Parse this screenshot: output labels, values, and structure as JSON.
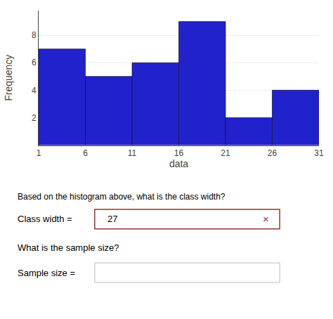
{
  "chart_data": {
    "type": "histogram",
    "bins": [
      1,
      6,
      11,
      16,
      21,
      26,
      31
    ],
    "values": [
      7,
      5,
      6,
      9,
      2,
      4
    ],
    "color": "#2222cc",
    "xlabel": "data",
    "ylabel": "Frequency",
    "xlim": [
      1,
      31
    ],
    "xticks": [
      1,
      6,
      11,
      16,
      21,
      26,
      31
    ],
    "ylim": [
      0,
      9.8
    ],
    "yticks": [
      2,
      4,
      6,
      8
    ],
    "grid": "y",
    "annotations": [
      {
        "text": "Based on the histogram above, what is the class width?"
      },
      {
        "text": "Class width = "
      },
      {
        "text": "27"
      },
      {
        "text": "×",
        "color": "#993333"
      },
      {
        "text": "What is the sample size?"
      },
      {
        "text": "Sample size = "
      }
    ]
  }
}
